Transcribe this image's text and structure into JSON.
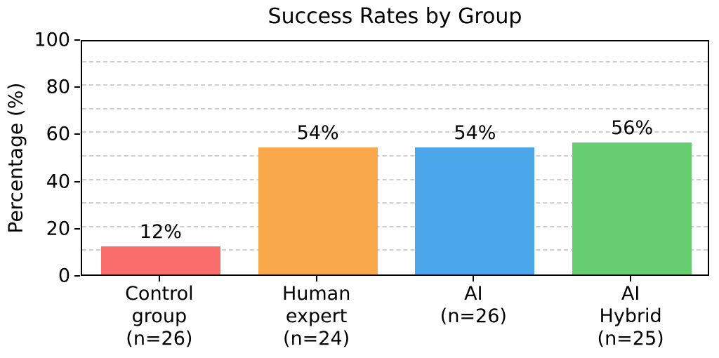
{
  "chart_data": {
    "type": "bar",
    "title": "Success Rates by Group",
    "xlabel": "",
    "ylabel": "Percentage (%)",
    "ylim": [
      0,
      100
    ],
    "yticks": [
      0,
      20,
      40,
      60,
      80,
      100
    ],
    "grid": "dashed-horizontal",
    "grid_interval": 10,
    "legend_position": "none",
    "categories": [
      "Control\ngroup\n(n=26)",
      "Human\nexpert\n(n=24)",
      "AI\n(n=26)",
      "AI Hybrid\n(n=25)"
    ],
    "values": [
      12,
      54,
      54,
      56
    ],
    "value_labels": [
      "12%",
      "54%",
      "54%",
      "56%"
    ],
    "bar_colors": [
      "#f96d6d",
      "#f9a84c",
      "#4ba7e9",
      "#66cd70"
    ]
  }
}
